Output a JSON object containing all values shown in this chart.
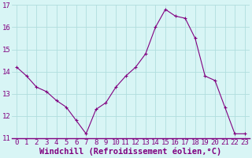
{
  "x": [
    0,
    1,
    2,
    3,
    4,
    5,
    6,
    7,
    8,
    9,
    10,
    11,
    12,
    13,
    14,
    15,
    16,
    17,
    18,
    19,
    20,
    21,
    22,
    23
  ],
  "y": [
    14.2,
    13.8,
    13.3,
    13.1,
    12.7,
    12.4,
    11.8,
    11.2,
    12.3,
    12.6,
    13.3,
    13.8,
    14.2,
    14.8,
    16.0,
    16.8,
    16.5,
    16.4,
    15.5,
    13.8,
    13.6,
    12.4,
    11.2,
    11.2
  ],
  "line_color": "#800080",
  "marker": "+",
  "bg_color": "#d8f5f5",
  "grid_color": "#b0dede",
  "xlabel": "Windchill (Refroidissement éolien,°C)",
  "xlabel_color": "#800080",
  "xlabel_fontsize": 7.5,
  "tick_color": "#800080",
  "tick_fontsize": 6.5,
  "ylim": [
    11,
    17
  ],
  "yticks": [
    11,
    12,
    13,
    14,
    15,
    16,
    17
  ],
  "xticks": [
    0,
    1,
    2,
    3,
    4,
    5,
    6,
    7,
    8,
    9,
    10,
    11,
    12,
    13,
    14,
    15,
    16,
    17,
    18,
    19,
    20,
    21,
    22,
    23
  ],
  "axis_line_color": "#800080"
}
